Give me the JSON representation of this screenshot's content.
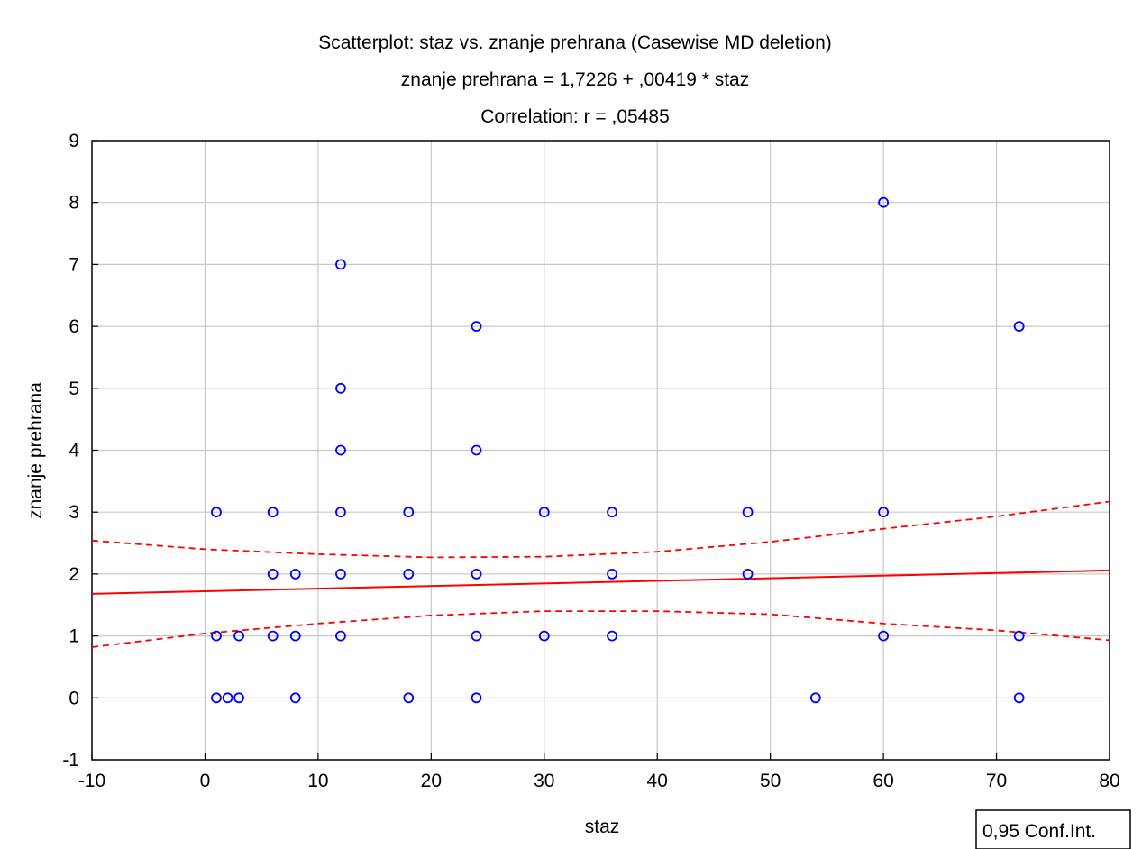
{
  "chart_data": {
    "type": "scatter",
    "title": "Scatterplot: staz vs. znanje prehrana (Casewise MD deletion)",
    "subtitle_lines": [
      "znanje prehrana = 1,7226 + ,00419 * staz",
      "Correlation: r = ,05485"
    ],
    "xlabel": "staz",
    "ylabel": "znanje prehrana",
    "xlim": [
      -10,
      80
    ],
    "ylim": [
      -1,
      9
    ],
    "x_ticks": [
      -10,
      0,
      10,
      20,
      30,
      40,
      50,
      60,
      70,
      80
    ],
    "y_ticks": [
      -1,
      0,
      1,
      2,
      3,
      4,
      5,
      6,
      7,
      8,
      9
    ],
    "grid": true,
    "legend": {
      "label": "0,95 Conf.Int.",
      "placement": "bottom-right"
    },
    "points": [
      [
        1,
        3
      ],
      [
        1,
        1
      ],
      [
        1,
        0
      ],
      [
        2,
        0
      ],
      [
        3,
        1
      ],
      [
        3,
        0
      ],
      [
        6,
        3
      ],
      [
        6,
        2
      ],
      [
        6,
        1
      ],
      [
        8,
        2
      ],
      [
        8,
        1
      ],
      [
        8,
        0
      ],
      [
        12,
        7
      ],
      [
        12,
        5
      ],
      [
        12,
        4
      ],
      [
        12,
        3
      ],
      [
        12,
        2
      ],
      [
        12,
        1
      ],
      [
        18,
        3
      ],
      [
        18,
        2
      ],
      [
        18,
        0
      ],
      [
        24,
        6
      ],
      [
        24,
        4
      ],
      [
        24,
        2
      ],
      [
        24,
        1
      ],
      [
        24,
        0
      ],
      [
        30,
        3
      ],
      [
        30,
        1
      ],
      [
        36,
        3
      ],
      [
        36,
        2
      ],
      [
        36,
        1
      ],
      [
        48,
        3
      ],
      [
        48,
        2
      ],
      [
        54,
        0
      ],
      [
        60,
        8
      ],
      [
        60,
        3
      ],
      [
        60,
        1
      ],
      [
        72,
        6
      ],
      [
        72,
        1
      ],
      [
        72,
        0
      ]
    ],
    "regression": {
      "intercept": 1.7226,
      "slope": 0.00419
    },
    "confidence_band": {
      "x": [
        -10,
        0,
        10,
        20,
        30,
        40,
        50,
        60,
        70,
        80
      ],
      "upper": [
        2.54,
        2.4,
        2.32,
        2.27,
        2.28,
        2.36,
        2.52,
        2.73,
        2.93,
        3.17
      ],
      "lower": [
        0.82,
        1.04,
        1.2,
        1.33,
        1.4,
        1.4,
        1.35,
        1.2,
        1.09,
        0.93
      ]
    },
    "colors": {
      "points": "#0000ff",
      "regression": "#ff0000",
      "confidence": "#ff0000",
      "grid": "#c8c8c8"
    }
  }
}
